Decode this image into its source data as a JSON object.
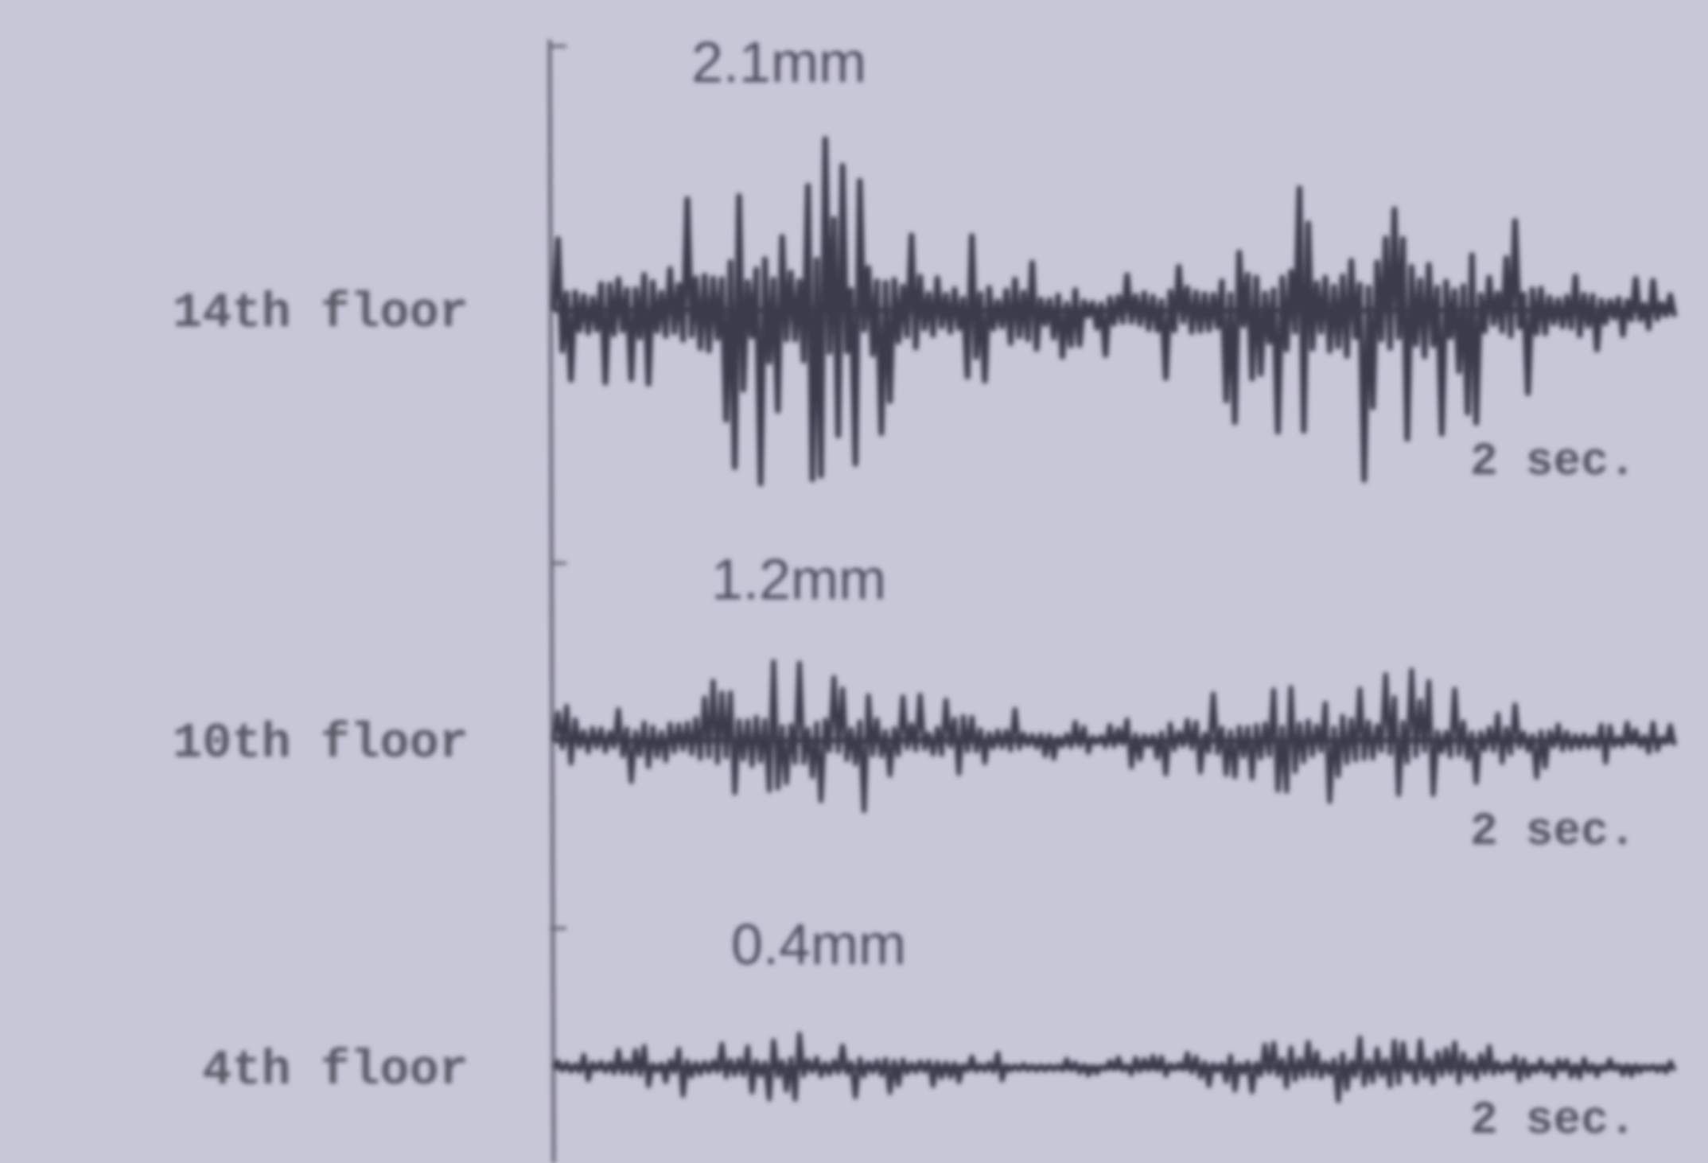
{
  "traces": [
    {
      "label": "14th floor",
      "amplitude": "2.1mm",
      "time_scale": "2 sec."
    },
    {
      "label": "10th floor",
      "amplitude": "1.2mm",
      "time_scale": "2 sec."
    },
    {
      "label": "4th floor",
      "amplitude": "0.4mm",
      "time_scale": "2 sec."
    }
  ]
}
